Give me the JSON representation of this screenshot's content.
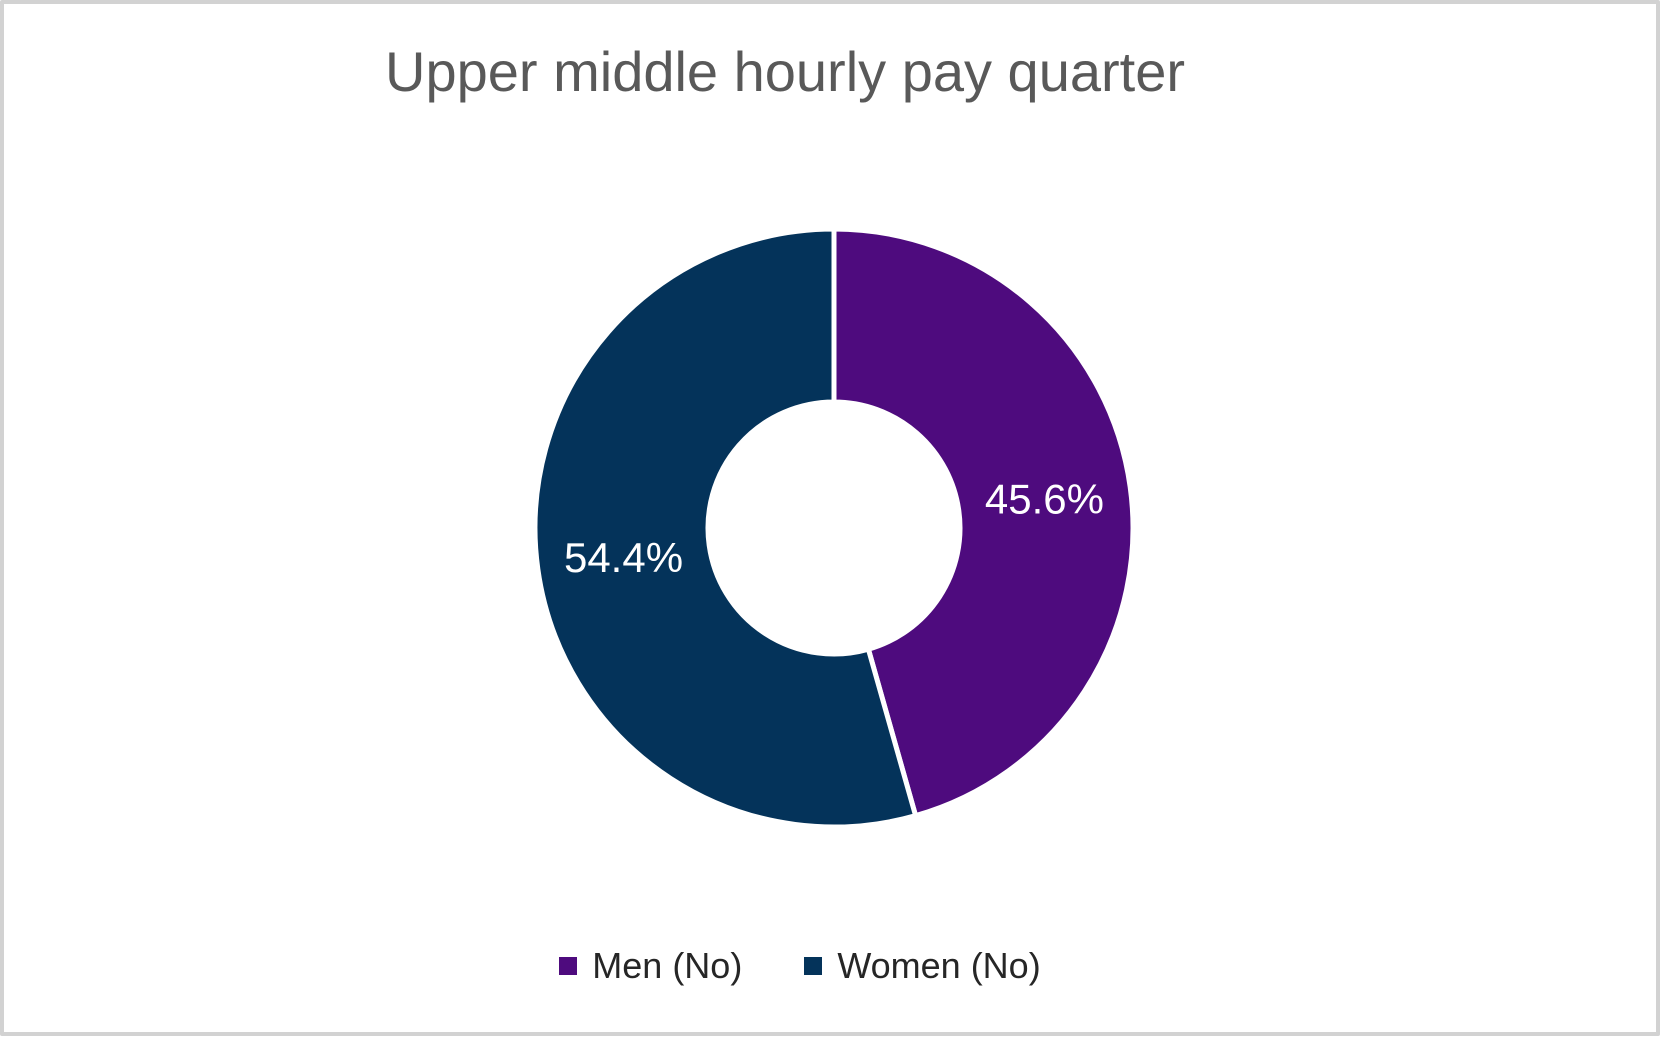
{
  "frame": {
    "background_color": "#FFFFFF",
    "border_color": "#D2D2D2"
  },
  "chart_data": {
    "type": "pie",
    "subtype": "doughnut",
    "title": "Upper middle hourly pay quarter",
    "categories": [
      "Men (No)",
      "Women (No)"
    ],
    "values": [
      45.6,
      54.4
    ],
    "data_labels": [
      "45.6%",
      "54.4%"
    ],
    "colors": [
      "#4E0B7E",
      "#04335A"
    ],
    "title_color": "#595959",
    "data_label_color": "#FFFFFF",
    "legend_text_color": "#262626",
    "separator_color": "#FFFFFF",
    "legend_position": "bottom",
    "start_angle_deg": 0,
    "donut_hole_ratio": 0.42
  }
}
